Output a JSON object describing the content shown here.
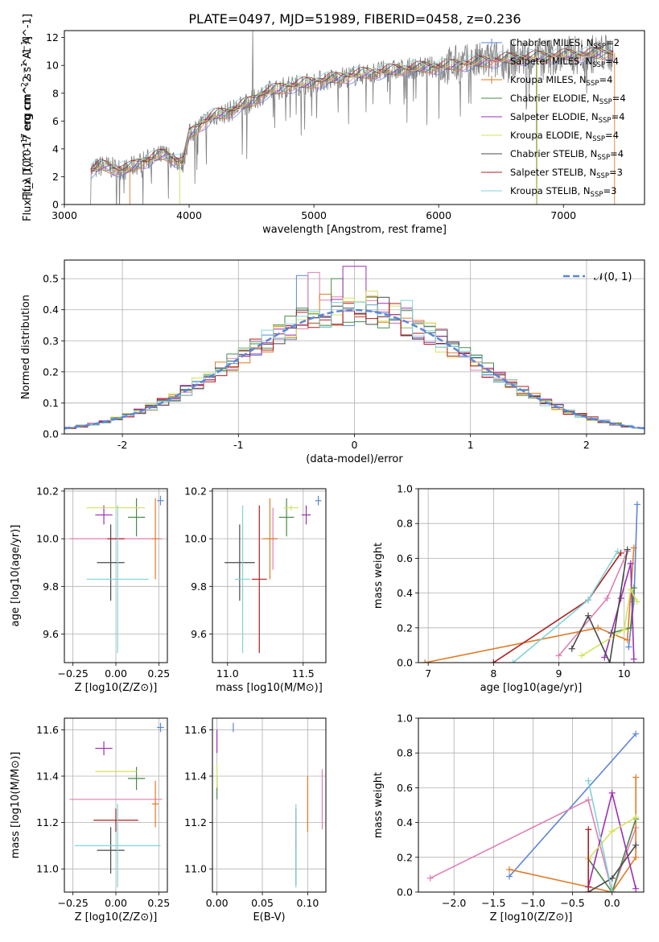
{
  "figure": {
    "title": "PLATE=0497, MJD=51989, FIBERID=0458, z=0.236"
  },
  "colors": {
    "Chabrier MILES": "#5b86d8",
    "Salpeter MILES": "#e07fb0",
    "Kroupa MILES": "#e07b27",
    "Chabrier ELODIE": "#4a8a4a",
    "Salpeter ELODIE": "#9b2fb5",
    "Kroupa ELODIE": "#d4e35a",
    "Chabrier STELIB": "#4a4a4a",
    "Salpeter STELIB": "#b01f1f",
    "Kroupa STELIB": "#7fd4d8",
    "data": "#808080",
    "normal": "#5b86d8"
  },
  "legend1": [
    {
      "pre": "Chabrier MILES, N",
      "sub": "SSP",
      "post": "=2",
      "model": "Chabrier MILES"
    },
    {
      "pre": "Salpeter MILES, N",
      "sub": "SSP",
      "post": "=4",
      "model": "Salpeter MILES"
    },
    {
      "pre": "Kroupa MILES, N",
      "sub": "SSP",
      "post": "=4",
      "model": "Kroupa MILES"
    },
    {
      "pre": "Chabrier ELODIE, N",
      "sub": "SSP",
      "post": "=4",
      "model": "Chabrier ELODIE"
    },
    {
      "pre": "Salpeter ELODIE, N",
      "sub": "SSP",
      "post": "=4",
      "model": "Salpeter ELODIE"
    },
    {
      "pre": "Kroupa ELODIE, N",
      "sub": "SSP",
      "post": "=4",
      "model": "Kroupa ELODIE"
    },
    {
      "pre": "Chabrier STELIB, N",
      "sub": "SSP",
      "post": "=4",
      "model": "Chabrier STELIB"
    },
    {
      "pre": "Salpeter STELIB, N",
      "sub": "SSP",
      "post": "=3",
      "model": "Salpeter STELIB"
    },
    {
      "pre": "Kroupa STELIB, N",
      "sub": "SSP",
      "post": "=3",
      "model": "Kroupa STELIB"
    }
  ],
  "legend2": {
    "label": "𝒩(0, 1)"
  },
  "chart_data": [
    {
      "id": "spectrum",
      "type": "line",
      "xlabel": "wavelength [Angstrom, rest frame]",
      "ylabel": "Flux [f_λ 10^-17 erg cm^-2 s^-1 A^-1]",
      "xlim": [
        3000,
        7650
      ],
      "ylim": [
        0,
        12.5
      ],
      "xticks": [
        3000,
        4000,
        5000,
        6000,
        7000
      ],
      "yticks": [
        0,
        2,
        4,
        6,
        8,
        10,
        12
      ],
      "continuum_x": [
        3210,
        3300,
        3400,
        3500,
        3600,
        3700,
        3800,
        3900,
        3950,
        4000,
        4100,
        4200,
        4300,
        4400,
        4500,
        4600,
        4800,
        5000,
        5200,
        5400,
        5600,
        5800,
        6000,
        6200,
        6400,
        6600,
        6800,
        7000,
        7200,
        7400
      ],
      "continuum_y": [
        2.4,
        2.8,
        2.6,
        2.5,
        3.0,
        3.3,
        3.6,
        3.2,
        3.0,
        5.0,
        5.8,
        6.4,
        6.6,
        7.0,
        7.4,
        8.0,
        8.5,
        8.8,
        9.1,
        9.4,
        9.6,
        9.8,
        9.9,
        10.1,
        10.3,
        10.5,
        10.6,
        10.7,
        10.8,
        10.9
      ],
      "models_range": [
        3210,
        7400
      ]
    },
    {
      "id": "residuals",
      "type": "histogram",
      "xlabel": "(data-model)/error",
      "ylabel": "Normed distribution",
      "xlim": [
        -2.5,
        2.5
      ],
      "ylim": [
        0,
        0.56
      ],
      "xticks": [
        -2,
        -1,
        0,
        1,
        2
      ],
      "yticks": [
        0.0,
        0.1,
        0.2,
        0.3,
        0.4,
        0.5
      ],
      "bin_width": 0.1,
      "peaks": [
        0.51,
        0.52,
        0.45,
        0.5,
        0.54,
        0.46,
        0.44,
        0.42,
        0.43
      ],
      "normal_curve": {
        "mean": 0,
        "sigma": 1
      }
    },
    {
      "id": "age-vs-Z",
      "type": "scatter",
      "xlabel": "Z [log10(Z/Z⊙)]",
      "ylabel": "age [log10(age/yr)]",
      "xlim": [
        -0.3,
        0.3
      ],
      "ylim": [
        9.48,
        10.21
      ],
      "xticks": [
        -0.25,
        0.0,
        0.25
      ],
      "xticklabels": [
        "−0.25",
        "0.00",
        "0.25"
      ],
      "yticks": [
        9.6,
        9.8,
        10.0,
        10.2
      ],
      "points": [
        {
          "model": "Chabrier MILES",
          "x": 0.26,
          "y": 10.16,
          "ex": 0.02,
          "ey": 0.02
        },
        {
          "model": "Salpeter MILES",
          "x": 0.0,
          "y": 10.0,
          "ex": 0.27,
          "ey": 0.0
        },
        {
          "model": "Kroupa MILES",
          "x": 0.23,
          "y": 10.0,
          "ex": 0.02,
          "ey": 0.17
        },
        {
          "model": "Chabrier ELODIE",
          "x": 0.12,
          "y": 10.09,
          "ex": 0.05,
          "ey": 0.08
        },
        {
          "model": "Salpeter ELODIE",
          "x": -0.07,
          "y": 10.1,
          "ex": 0.05,
          "ey": 0.04
        },
        {
          "model": "Kroupa ELODIE",
          "x": 0.0,
          "y": 10.13,
          "ex": 0.17,
          "ey": 0.01
        },
        {
          "model": "Chabrier STELIB",
          "x": -0.03,
          "y": 9.9,
          "ex": 0.08,
          "ey": 0.16
        },
        {
          "model": "Salpeter STELIB",
          "x": 0.0,
          "y": 10.0,
          "ex": 0.05,
          "ey": 0.0
        },
        {
          "model": "Kroupa STELIB",
          "x": 0.01,
          "y": 9.83,
          "ex": 0.18,
          "ey": 0.31
        }
      ]
    },
    {
      "id": "age-vs-mass",
      "type": "scatter",
      "xlabel": "mass [log10(M/M⊙)]",
      "ylabel": "",
      "xlim": [
        10.9,
        11.65
      ],
      "ylim": [
        9.48,
        10.21
      ],
      "xticks": [
        11.0,
        11.5
      ],
      "xticklabels": [
        "11.0",
        "11.5"
      ],
      "yticks": [
        9.6,
        9.8,
        10.0,
        10.2
      ],
      "points": [
        {
          "model": "Chabrier MILES",
          "x": 11.6,
          "y": 10.16,
          "ex": 0.02,
          "ey": 0.02
        },
        {
          "model": "Salpeter MILES",
          "x": 11.3,
          "y": 10.0,
          "ex": 0.03,
          "ey": 0.13
        },
        {
          "model": "Kroupa MILES",
          "x": 11.28,
          "y": 10.0,
          "ex": 0.05,
          "ey": 0.17
        },
        {
          "model": "Chabrier ELODIE",
          "x": 11.39,
          "y": 10.09,
          "ex": 0.05,
          "ey": 0.08
        },
        {
          "model": "Salpeter ELODIE",
          "x": 11.52,
          "y": 10.1,
          "ex": 0.03,
          "ey": 0.04
        },
        {
          "model": "Kroupa ELODIE",
          "x": 11.42,
          "y": 10.13,
          "ex": 0.05,
          "ey": 0.01
        },
        {
          "model": "Chabrier STELIB",
          "x": 11.08,
          "y": 9.9,
          "ex": 0.1,
          "ey": 0.16
        },
        {
          "model": "Salpeter STELIB",
          "x": 11.21,
          "y": 9.83,
          "ex": 0.05,
          "ey": 0.31
        },
        {
          "model": "Kroupa STELIB",
          "x": 11.1,
          "y": 9.83,
          "ex": 0.05,
          "ey": 0.31
        }
      ]
    },
    {
      "id": "mass-weight-vs-age",
      "type": "line",
      "xlabel": "age [log10(age/yr)]",
      "ylabel": "mass weight",
      "xlim": [
        6.85,
        10.3
      ],
      "ylim": [
        0,
        1
      ],
      "xticks": [
        7,
        8,
        9,
        10
      ],
      "yticks": [
        0.0,
        0.2,
        0.4,
        0.6,
        0.8,
        1.0
      ],
      "series": [
        {
          "model": "Chabrier MILES",
          "x": [
            10.07,
            10.15,
            10.2
          ],
          "y": [
            0.09,
            0.35,
            0.91
          ]
        },
        {
          "model": "Salpeter MILES",
          "x": [
            9.0,
            9.74,
            10.05
          ],
          "y": [
            0.04,
            0.37,
            0.64
          ]
        },
        {
          "model": "Kroupa MILES",
          "x": [
            6.95,
            9.6,
            10.05,
            10.15
          ],
          "y": [
            0.0,
            0.2,
            0.13,
            0.66
          ]
        },
        {
          "model": "Chabrier ELODIE",
          "x": [
            9.8,
            10.0,
            10.1,
            10.15
          ],
          "y": [
            0.17,
            0.19,
            0.2,
            0.43
          ]
        },
        {
          "model": "Salpeter ELODIE",
          "x": [
            9.7,
            9.95,
            10.1,
            10.15
          ],
          "y": [
            0.03,
            0.37,
            0.57,
            0.02
          ]
        },
        {
          "model": "Kroupa ELODIE",
          "x": [
            9.35,
            10.0,
            10.1,
            10.2
          ],
          "y": [
            0.04,
            0.19,
            0.42,
            0.35
          ]
        },
        {
          "model": "Chabrier STELIB",
          "x": [
            9.2,
            9.45,
            9.78,
            10.05
          ],
          "y": [
            0.08,
            0.27,
            0.0,
            0.65
          ]
        },
        {
          "model": "Salpeter STELIB",
          "x": [
            8.0,
            9.45,
            9.95
          ],
          "y": [
            0.0,
            0.36,
            0.63
          ]
        },
        {
          "model": "Kroupa STELIB",
          "x": [
            8.3,
            9.45,
            9.9
          ],
          "y": [
            0.0,
            0.36,
            0.64
          ]
        }
      ]
    },
    {
      "id": "mass-vs-Z",
      "type": "scatter",
      "xlabel": "Z [log10(Z/Z⊙)]",
      "ylabel": "mass [log10(M/M⊙)]",
      "xlim": [
        -0.3,
        0.3
      ],
      "ylim": [
        10.9,
        11.65
      ],
      "xticks": [
        -0.25,
        0.0,
        0.25
      ],
      "xticklabels": [
        "−0.25",
        "0.00",
        "0.25"
      ],
      "yticks": [
        11.0,
        11.2,
        11.4,
        11.6
      ],
      "points": [
        {
          "model": "Chabrier MILES",
          "x": 0.26,
          "y": 11.61,
          "ex": 0.02,
          "ey": 0.02
        },
        {
          "model": "Salpeter MILES",
          "x": 0.0,
          "y": 11.3,
          "ex": 0.27,
          "ey": 0.0
        },
        {
          "model": "Kroupa MILES",
          "x": 0.23,
          "y": 11.28,
          "ex": 0.02,
          "ey": 0.1
        },
        {
          "model": "Chabrier ELODIE",
          "x": 0.12,
          "y": 11.39,
          "ex": 0.05,
          "ey": 0.05
        },
        {
          "model": "Salpeter ELODIE",
          "x": -0.07,
          "y": 11.52,
          "ex": 0.05,
          "ey": 0.03
        },
        {
          "model": "Kroupa ELODIE",
          "x": 0.0,
          "y": 11.42,
          "ex": 0.12,
          "ey": 0.0
        },
        {
          "model": "Chabrier STELIB",
          "x": -0.03,
          "y": 11.08,
          "ex": 0.08,
          "ey": 0.1
        },
        {
          "model": "Salpeter STELIB",
          "x": 0.0,
          "y": 11.21,
          "ex": 0.13,
          "ey": 0.05
        },
        {
          "model": "Kroupa STELIB",
          "x": 0.01,
          "y": 11.1,
          "ex": 0.25,
          "ey": 0.18
        }
      ]
    },
    {
      "id": "EBV",
      "type": "scatter",
      "xlabel": "E(B-V)",
      "ylabel": "",
      "xlim": [
        -0.005,
        0.12
      ],
      "ylim": [
        10.9,
        11.65
      ],
      "xticks": [
        0.0,
        0.05,
        0.1
      ],
      "xticklabels": [
        "0.00",
        "0.05",
        "0.10"
      ],
      "yticks": [
        11.0,
        11.2,
        11.4,
        11.6
      ],
      "points": [
        {
          "model": "Chabrier MILES",
          "x": 0.018,
          "y": 11.61,
          "ex": 0,
          "ey": 0.02
        },
        {
          "model": "Salpeter MILES",
          "x": 0.116,
          "y": 11.3,
          "ex": 0,
          "ey": 0.13
        },
        {
          "model": "Kroupa MILES",
          "x": 0.1,
          "y": 11.28,
          "ex": 0,
          "ey": 0.12
        },
        {
          "model": "Chabrier ELODIE",
          "x": 0.0,
          "y": 11.35,
          "ex": 0,
          "ey": 0.05
        },
        {
          "model": "Salpeter ELODIE",
          "x": 0.0,
          "y": 11.55,
          "ex": 0,
          "ey": 0.05
        },
        {
          "model": "Kroupa ELODIE",
          "x": 0.0,
          "y": 11.4,
          "ex": 0,
          "ey": 0.05
        },
        {
          "model": "Chabrier STELIB",
          "x": 0.087,
          "y": 11.03,
          "ex": 0,
          "ey": 0.1
        },
        {
          "model": "Salpeter STELIB",
          "x": 0.087,
          "y": 11.18,
          "ex": 0,
          "ey": 0.08
        },
        {
          "model": "Kroupa STELIB",
          "x": 0.087,
          "y": 11.1,
          "ex": 0,
          "ey": 0.18
        }
      ]
    },
    {
      "id": "mass-weight-vs-Z",
      "type": "line",
      "xlabel": "Z [log10(Z/Z⊙)]",
      "ylabel": "mass weight",
      "xlim": [
        -2.45,
        0.4
      ],
      "ylim": [
        0,
        1
      ],
      "xticks": [
        -2.0,
        -1.5,
        -1.0,
        -0.5,
        0.0
      ],
      "xticklabels": [
        "−2.0",
        "−1.5",
        "−1.0",
        "−0.5",
        "0.0"
      ],
      "yticks": [
        0.0,
        0.2,
        0.4,
        0.6,
        0.8,
        1.0
      ],
      "series": [
        {
          "model": "Chabrier MILES",
          "x": [
            -1.3,
            0.3
          ],
          "y": [
            0.09,
            0.91
          ]
        },
        {
          "model": "Salpeter MILES",
          "x": [
            -2.3,
            -0.3,
            0.0,
            0.3
          ],
          "y": [
            0.08,
            0.53,
            0.0,
            0.37
          ]
        },
        {
          "model": "Kroupa MILES",
          "x": [
            -1.3,
            -0.3,
            0.0,
            0.3,
            0.3
          ],
          "y": [
            0.13,
            0.03,
            0.0,
            0.2,
            0.66
          ]
        },
        {
          "model": "Chabrier ELODIE",
          "x": [
            -0.3,
            0.0,
            0.3
          ],
          "y": [
            0.19,
            0.0,
            0.42
          ]
        },
        {
          "model": "Salpeter ELODIE",
          "x": [
            -0.3,
            0.0,
            0.3
          ],
          "y": [
            0.03,
            0.57,
            0.02
          ]
        },
        {
          "model": "Kroupa ELODIE",
          "x": [
            -0.3,
            0.0,
            0.3
          ],
          "y": [
            0.19,
            0.35,
            0.43
          ]
        },
        {
          "model": "Chabrier STELIB",
          "x": [
            -0.3,
            0.0,
            0.3
          ],
          "y": [
            0.0,
            0.08,
            0.27
          ]
        },
        {
          "model": "Salpeter STELIB",
          "x": [
            -0.3,
            -0.3
          ],
          "y": [
            0.0,
            0.36
          ]
        },
        {
          "model": "Kroupa STELIB",
          "x": [
            -0.3,
            0.0,
            0.0
          ],
          "y": [
            0.64,
            0.0,
            0.0
          ]
        }
      ]
    }
  ]
}
